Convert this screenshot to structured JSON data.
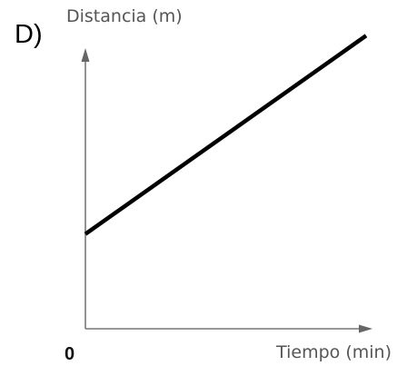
{
  "chart_data": {
    "type": "line",
    "option_label": "D)",
    "title": "",
    "xlabel": "Tiempo (min)",
    "ylabel": "Distancia (m)",
    "origin_label": "0",
    "grid": false,
    "xlim": [
      0,
      10
    ],
    "ylim": [
      0,
      10
    ],
    "series": [
      {
        "x": [
          0,
          10
        ],
        "y": [
          3.2,
          9.9
        ]
      }
    ]
  },
  "colors": {
    "series": "#000000",
    "axis": "#777777",
    "axis_text": "#555555"
  }
}
